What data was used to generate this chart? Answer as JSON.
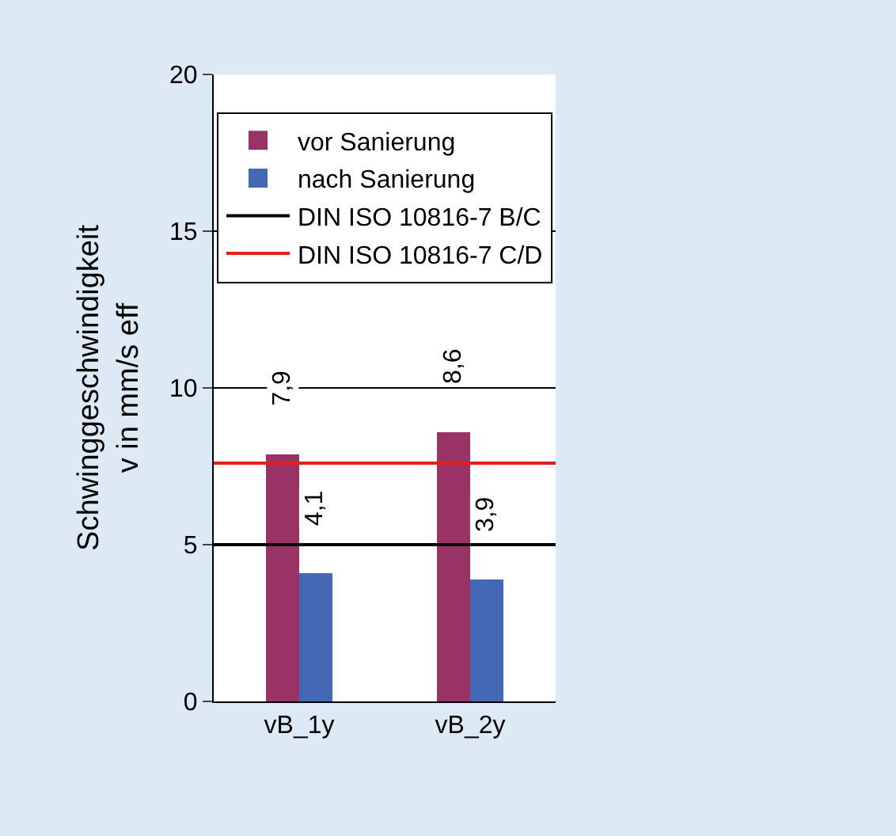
{
  "chart_data": {
    "type": "bar",
    "categories": [
      "vB_1y",
      "vB_2y"
    ],
    "ylabel": "Schwinggeschwindigkeit\nv in mm/s eff",
    "ylim": [
      0,
      20
    ],
    "yticks": [
      0,
      5,
      10,
      15,
      20
    ],
    "grid": "y",
    "legend": "top",
    "series": [
      {
        "name": "vor Sanierung",
        "color": "#993366",
        "values": [
          7.9,
          8.6
        ],
        "value_labels": [
          "7,9",
          "8,6"
        ]
      },
      {
        "name": "nach Sanierung",
        "color": "#4468b4",
        "values": [
          4.1,
          3.9
        ],
        "value_labels": [
          "4,1",
          "3,9"
        ]
      }
    ],
    "ref_lines": [
      {
        "axis": "y",
        "value": 5,
        "label": "DIN ISO 10816-7 B/C",
        "color": "#000000"
      },
      {
        "axis": "y",
        "value": 7.6,
        "label": "DIN ISO 10816-7 C/D",
        "color": "#e02020"
      }
    ]
  }
}
